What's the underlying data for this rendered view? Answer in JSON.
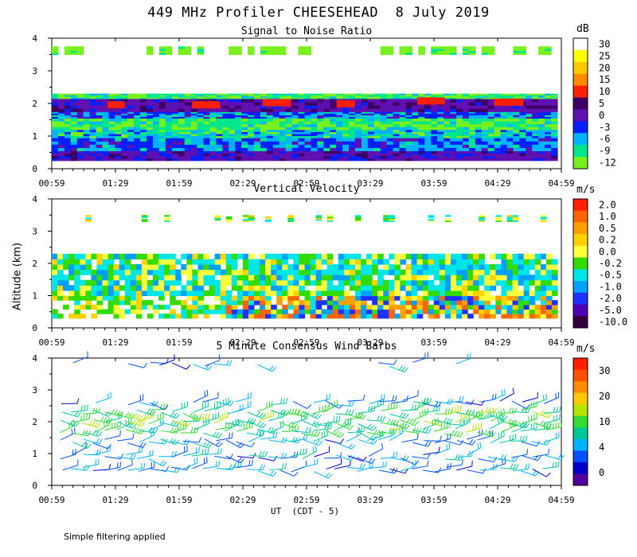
{
  "title": "449 MHz Profiler CHEESEHEAD  8 July 2019",
  "ylabel": "Altitude (km)",
  "xlabel": "UT  (CDT - 5)",
  "footnote": "Simple filtering applied",
  "chart_data": [
    {
      "type": "heatmap",
      "title": "Signal to Noise Ratio",
      "colorbar_unit": "dB",
      "colorbar_ticks": [
        "30",
        "25",
        "20",
        "15",
        "10",
        "5",
        "0",
        "-3",
        "-6",
        "-9",
        "-12"
      ],
      "colorbar_colors": [
        "#ffffff",
        "#ffff00",
        "#ffc800",
        "#ff8c00",
        "#ff2000",
        "#3c0064",
        "#6010b0",
        "#0020ff",
        "#00b4ff",
        "#00e68c",
        "#78f01e"
      ],
      "ylim": [
        0,
        4
      ],
      "yticks": [
        "0",
        "1",
        "2",
        "3",
        "4"
      ],
      "xticks": [
        "00:59",
        "01:29",
        "01:59",
        "02:29",
        "02:59",
        "03:29",
        "03:59",
        "04:29",
        "04:59"
      ],
      "layers": [
        {
          "ybottom": 0.25,
          "ytop": 0.55,
          "value_db": 2
        },
        {
          "ybottom": 0.55,
          "ytop": 0.95,
          "value_db": -3
        },
        {
          "ybottom": 0.95,
          "ytop": 1.2,
          "value_db": -6
        },
        {
          "ybottom": 1.2,
          "ytop": 1.55,
          "value_db": -9
        },
        {
          "ybottom": 1.55,
          "ytop": 1.75,
          "value_db": -3
        },
        {
          "ybottom": 1.75,
          "ytop": 2.15,
          "value_db": 3
        },
        {
          "ybottom": 2.15,
          "ytop": 2.3,
          "value_db": -9
        },
        {
          "ybottom": 3.5,
          "ytop": 3.75,
          "value_db": -12
        }
      ]
    },
    {
      "type": "heatmap",
      "title": "Vertical Velocity",
      "colorbar_unit": "m/s",
      "colorbar_ticks": [
        "2.0",
        "1.0",
        "0.5",
        "0.2",
        "0.0",
        "-0.2",
        "-0.5",
        "-1.0",
        "-2.0",
        "-5.0",
        "-10.0"
      ],
      "colorbar_colors": [
        "#ff1e00",
        "#ff6400",
        "#ffa000",
        "#ffd200",
        "#ffff3c",
        "#32dc00",
        "#00e6e6",
        "#00a0ff",
        "#1e32ff",
        "#5000b4",
        "#32003c"
      ],
      "ylim": [
        0,
        4
      ],
      "yticks": [
        "0",
        "1",
        "2",
        "3",
        "4"
      ],
      "xticks": [
        "00:59",
        "01:29",
        "01:59",
        "02:29",
        "02:59",
        "03:29",
        "03:59",
        "04:29",
        "04:59"
      ],
      "layers": [
        {
          "ybottom": 0.3,
          "ytop": 1.0,
          "value_ms": 0.0
        },
        {
          "ybottom": 1.0,
          "ytop": 2.3,
          "value_ms": -0.2
        },
        {
          "ybottom": 3.3,
          "ytop": 3.5,
          "value_ms": 0.0
        }
      ]
    },
    {
      "type": "scatter",
      "title": "5 Minute Consensus Wind Barbs",
      "colorbar_unit": "m/s",
      "colorbar_ticks": [
        "30",
        "20",
        "10",
        "4",
        "0"
      ],
      "colorbar_colors": [
        "#ff1e00",
        "#ff5000",
        "#ff8c00",
        "#ffc800",
        "#b4e600",
        "#32dc32",
        "#00c896",
        "#00b4ff",
        "#0050ff",
        "#0000c8",
        "#50009b"
      ],
      "ylim": [
        0,
        4
      ],
      "yticks": [
        "0",
        "1",
        "2",
        "3",
        "4"
      ],
      "xticks": [
        "00:59",
        "01:29",
        "01:59",
        "02:29",
        "02:59",
        "03:29",
        "03:59",
        "04:29",
        "04:59"
      ],
      "heights_km": [
        0.5,
        0.9,
        1.4,
        1.7,
        2.0,
        2.3,
        2.6,
        3.8
      ],
      "speed_range_ms": [
        0,
        35
      ]
    }
  ]
}
